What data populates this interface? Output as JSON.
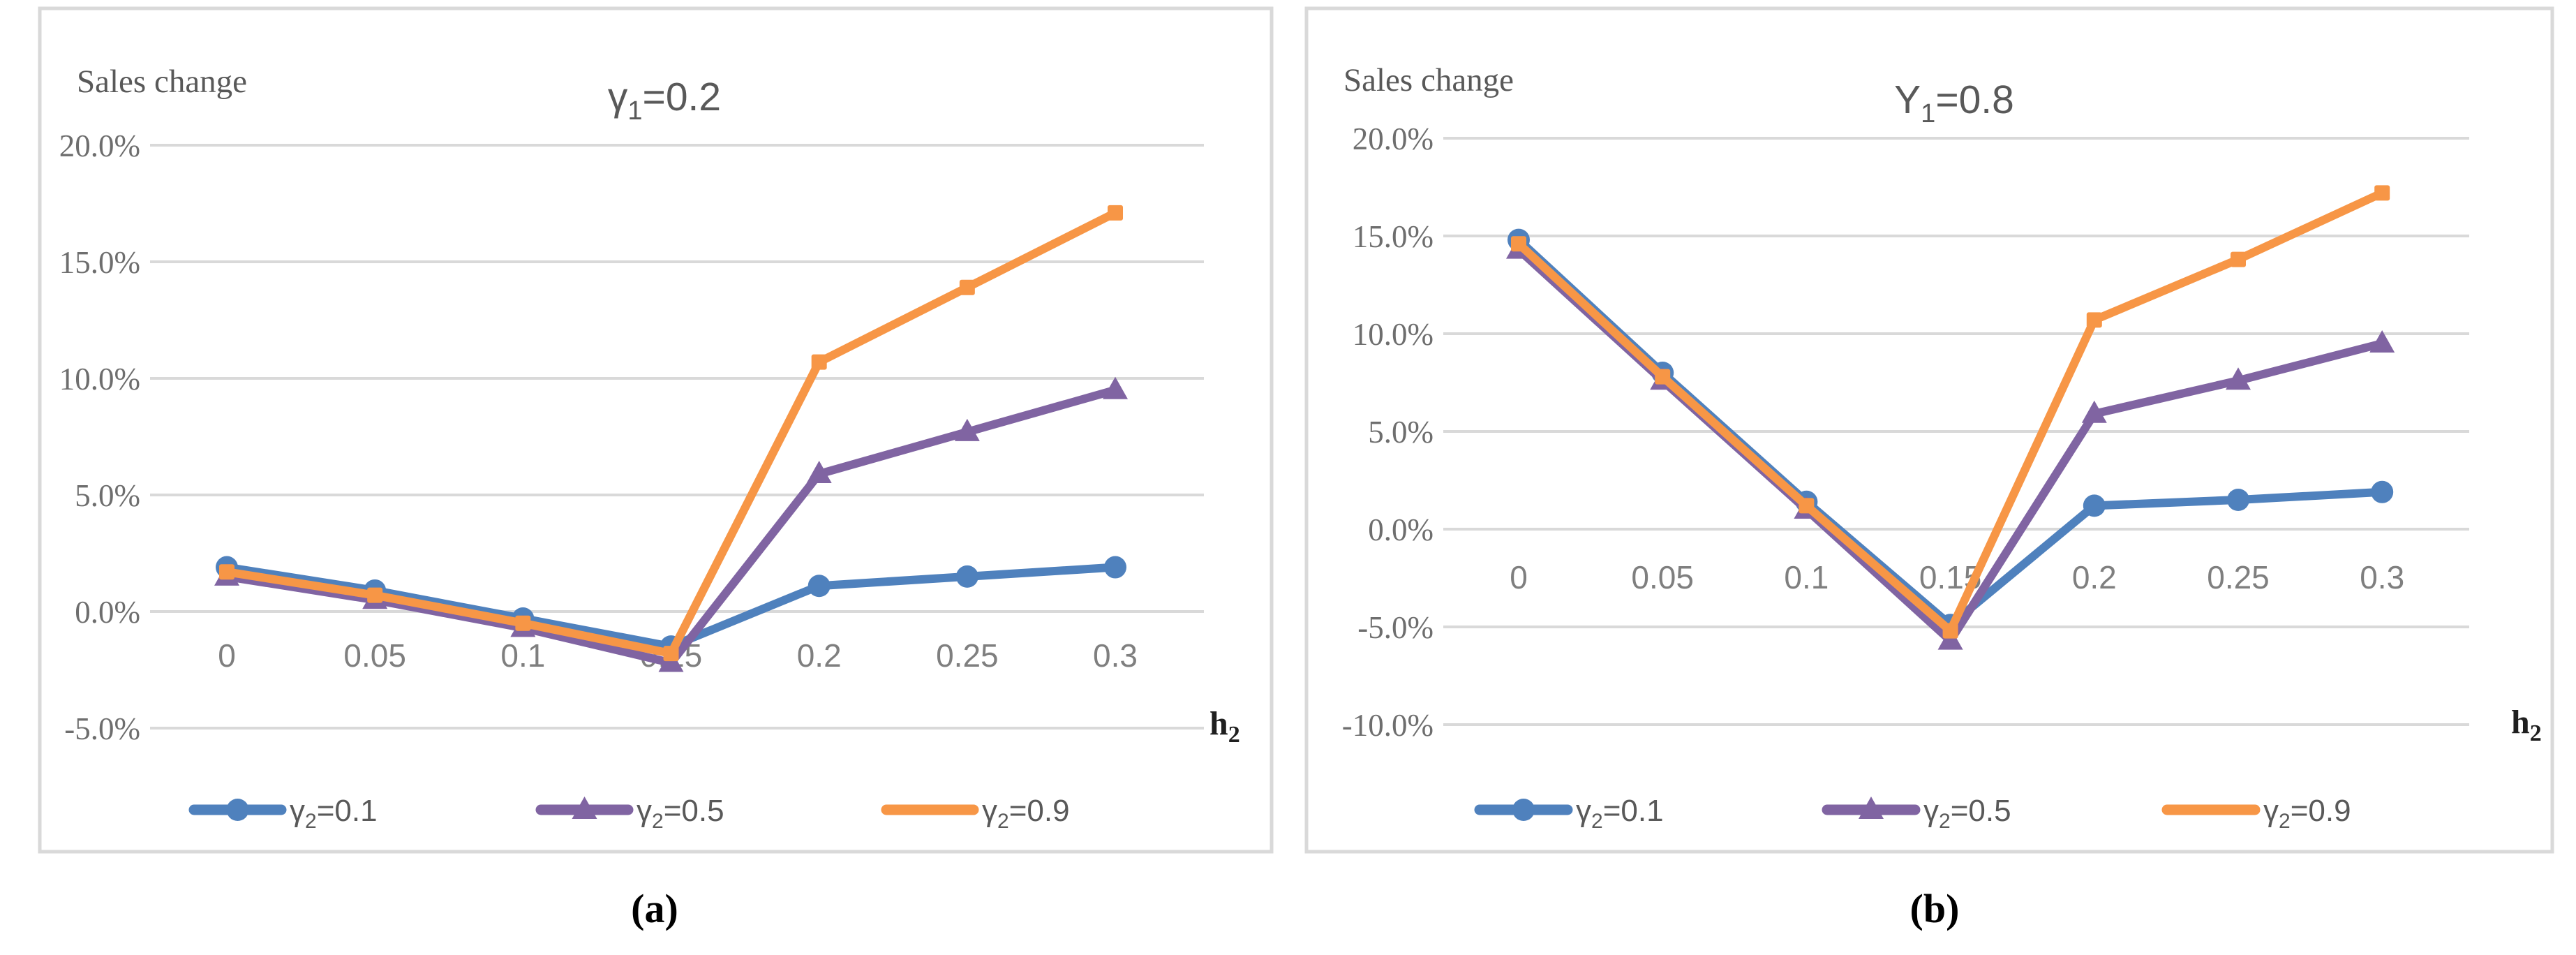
{
  "figure": {
    "captions": [
      "(a)",
      "(b)"
    ]
  },
  "colors": {
    "series_blue": "#4F81BD",
    "series_purple": "#8064A2",
    "series_orange": "#F79646",
    "gridline": "#D9D9D9",
    "panel_border": "#D9D9D9",
    "y_tick_text": "#6E6E6E",
    "x_tick_text": "#7F7F7F",
    "title_text": "#595959",
    "axis_label_text": "#1F1F1F"
  },
  "chart_data": [
    {
      "type": "line",
      "title": {
        "prefix": "γ",
        "sub": "1",
        "suffix": "=0.2"
      },
      "ylabel": "Sales change",
      "xlabel": {
        "prefix": "h",
        "sub": "2"
      },
      "categories": [
        "0",
        "0.05",
        "0.1",
        "0.15",
        "0.2",
        "0.25",
        "0.3"
      ],
      "x_values": [
        0,
        0.05,
        0.1,
        0.15,
        0.2,
        0.25,
        0.3
      ],
      "ylim": [
        -5,
        20
      ],
      "grid": true,
      "legend_position": "bottom",
      "yticks": [
        {
          "v": 20,
          "label": "20.0%"
        },
        {
          "v": 15,
          "label": "15.0%"
        },
        {
          "v": 10,
          "label": "10.0%"
        },
        {
          "v": 5,
          "label": "5.0%"
        },
        {
          "v": 0,
          "label": "0.0%"
        },
        {
          "v": -5,
          "label": "-5.0%"
        }
      ],
      "series": [
        {
          "name": {
            "prefix": "γ",
            "sub": "2",
            "suffix": "=0.1"
          },
          "color": "#4F81BD",
          "marker": "circle",
          "values": [
            1.9,
            0.9,
            -0.3,
            -1.5,
            1.1,
            1.5,
            1.9
          ]
        },
        {
          "name": {
            "prefix": "γ",
            "sub": "2",
            "suffix": "=0.5"
          },
          "color": "#8064A2",
          "marker": "triangle",
          "values": [
            1.5,
            0.5,
            -0.7,
            -2.2,
            5.9,
            7.7,
            9.5
          ]
        },
        {
          "name": {
            "prefix": "γ",
            "sub": "2",
            "suffix": "=0.9"
          },
          "color": "#F79646",
          "marker": "square",
          "values": [
            1.7,
            0.7,
            -0.5,
            -1.8,
            10.7,
            13.9,
            17.1
          ]
        }
      ]
    },
    {
      "type": "line",
      "title": {
        "prefix": "Y",
        "sub": "1",
        "suffix": "=0.8"
      },
      "ylabel": "Sales change",
      "xlabel": {
        "prefix": "h",
        "sub": "2"
      },
      "categories": [
        "0",
        "0.05",
        "0.1",
        "0.15",
        "0.2",
        "0.25",
        "0.3"
      ],
      "x_values": [
        0,
        0.05,
        0.1,
        0.15,
        0.2,
        0.25,
        0.3
      ],
      "ylim": [
        -10,
        20
      ],
      "grid": true,
      "legend_position": "bottom",
      "yticks": [
        {
          "v": 20,
          "label": "20.0%"
        },
        {
          "v": 15,
          "label": "15.0%"
        },
        {
          "v": 10,
          "label": "10.0%"
        },
        {
          "v": 5,
          "label": "5.0%"
        },
        {
          "v": 0,
          "label": "0.0%"
        },
        {
          "v": -5,
          "label": "-5.0%"
        },
        {
          "v": -10,
          "label": "-10.0%"
        }
      ],
      "series": [
        {
          "name": {
            "prefix": "γ",
            "sub": "2",
            "suffix": "=0.1"
          },
          "color": "#4F81BD",
          "marker": "circle",
          "values": [
            14.8,
            8.0,
            1.4,
            -4.9,
            1.2,
            1.5,
            1.9
          ]
        },
        {
          "name": {
            "prefix": "γ",
            "sub": "2",
            "suffix": "=0.5"
          },
          "color": "#8064A2",
          "marker": "triangle",
          "values": [
            14.3,
            7.6,
            1.0,
            -5.7,
            5.9,
            7.6,
            9.5
          ]
        },
        {
          "name": {
            "prefix": "γ",
            "sub": "2",
            "suffix": "=0.9"
          },
          "color": "#F79646",
          "marker": "square",
          "values": [
            14.6,
            7.8,
            1.2,
            -5.2,
            10.7,
            13.8,
            17.2
          ]
        }
      ]
    }
  ]
}
